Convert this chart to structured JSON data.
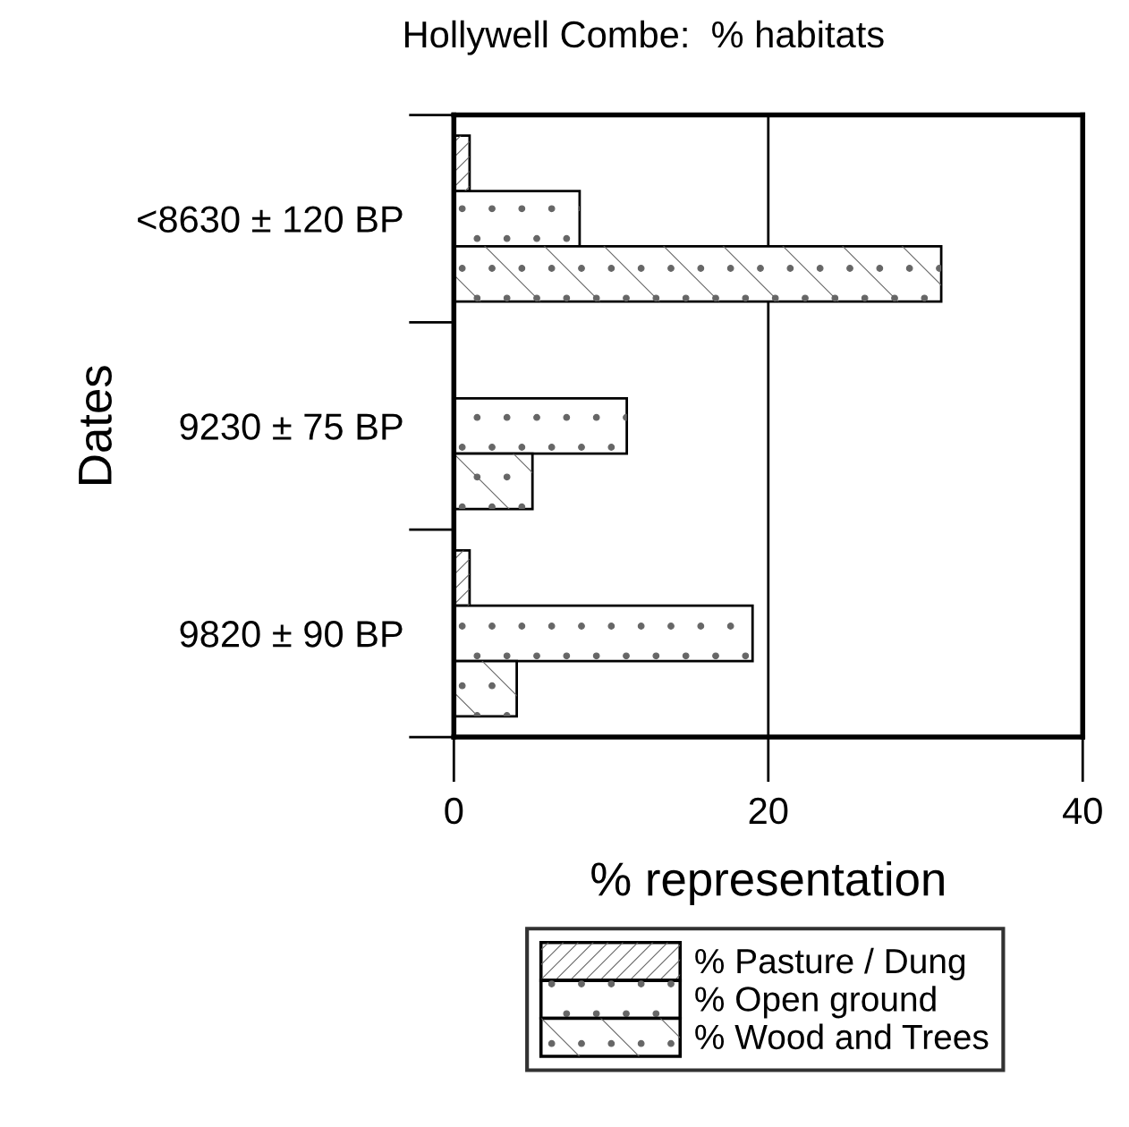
{
  "chart_data": {
    "type": "bar",
    "orientation": "horizontal",
    "title": "Hollywell Combe:  % habitats",
    "xlabel": "% representation",
    "ylabel": "Dates",
    "categories": [
      "<8630 ± 120 BP",
      "9230 ± 75 BP",
      "9820 ± 90 BP"
    ],
    "series": [
      {
        "name": "% Pasture / Dung",
        "color": "#ffffff",
        "values": [
          1,
          0,
          1
        ]
      },
      {
        "name": "% Open ground",
        "color": "#ffffff",
        "values": [
          8,
          11,
          19
        ]
      },
      {
        "name": "% Wood and Trees",
        "color": "#ffffff",
        "values": [
          31,
          5,
          4
        ]
      }
    ],
    "xlim": [
      0,
      40
    ],
    "xticks": [
      0,
      20,
      40
    ],
    "ref_lines": [
      {
        "axis": "x",
        "value": 20
      }
    ],
    "grid": false,
    "legend": "bottom"
  }
}
